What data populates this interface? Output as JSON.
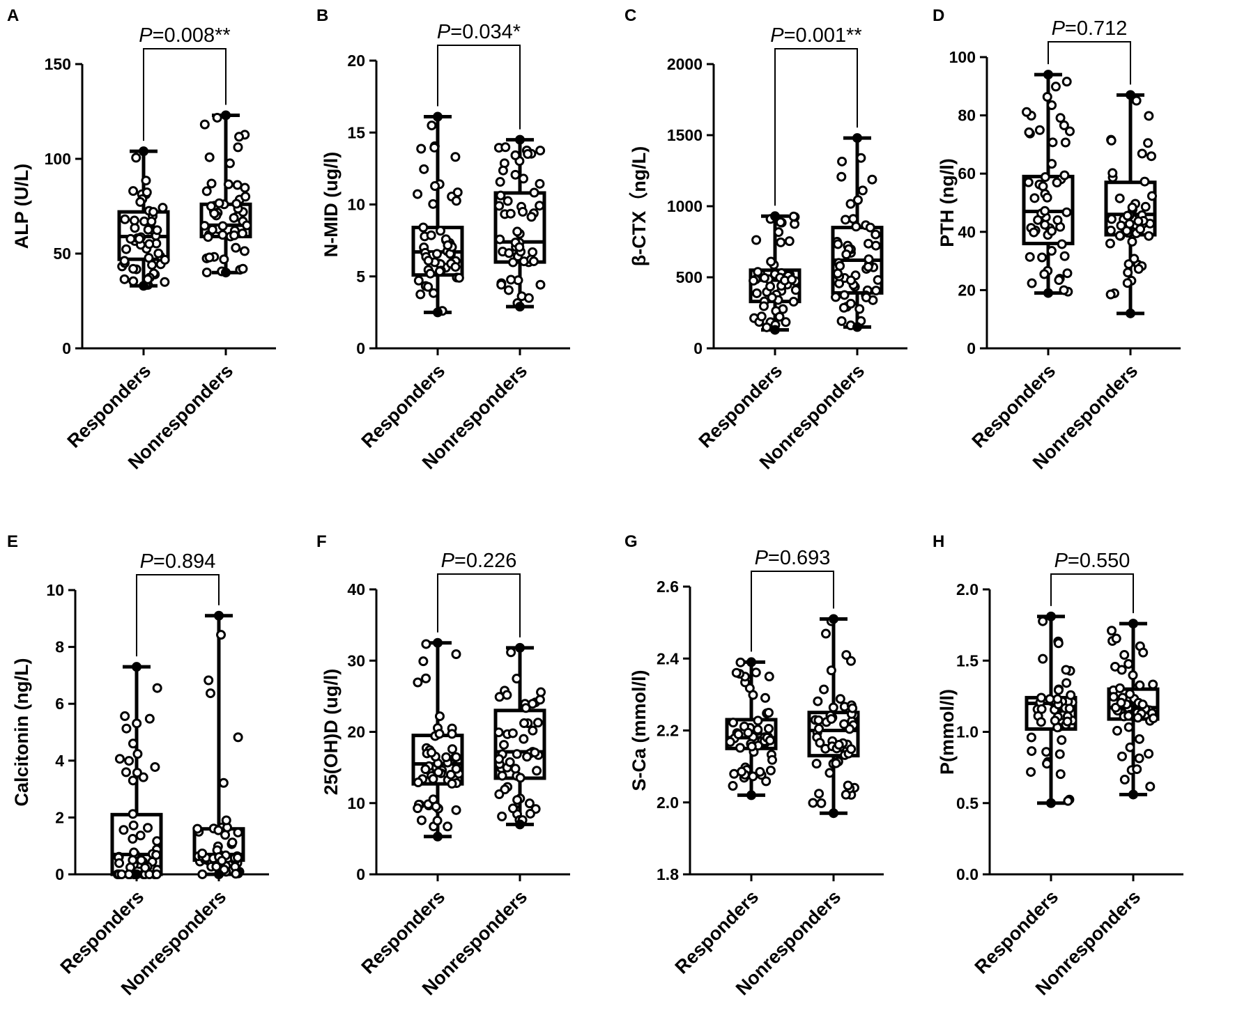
{
  "chart_data": [
    {
      "panel": "A",
      "type": "box",
      "ylabel": "ALP (U/L)",
      "ylim": [
        0,
        150
      ],
      "yticks": [
        0,
        50,
        100,
        150
      ],
      "categories": [
        "Responders",
        "Nonresponders"
      ],
      "annotation": {
        "italic": "P",
        "text": "=0.008**"
      },
      "groups": [
        {
          "name": "Responders",
          "min": 33,
          "q1": 47,
          "median": 59,
          "q3": 72,
          "max": 104
        },
        {
          "name": "Nonresponders",
          "min": 40,
          "q1": 59,
          "median": 65,
          "q3": 76,
          "max": 123
        }
      ]
    },
    {
      "panel": "B",
      "type": "box",
      "ylabel": "N-MID (ug/l)",
      "ylim": [
        0,
        20
      ],
      "yticks": [
        0,
        5,
        10,
        15,
        20
      ],
      "categories": [
        "Responders",
        "Nonresponders"
      ],
      "annotation": {
        "italic": "P",
        "text": "=0.034*"
      },
      "groups": [
        {
          "name": "Responders",
          "min": 2.5,
          "q1": 5.1,
          "median": 6.7,
          "q3": 8.4,
          "max": 16.1
        },
        {
          "name": "Nonresponders",
          "min": 2.9,
          "q1": 6.0,
          "median": 7.4,
          "q3": 10.8,
          "max": 14.5
        }
      ]
    },
    {
      "panel": "C",
      "type": "box",
      "ylabel": "β-CTX（ng/L)",
      "ylim": [
        0,
        2000
      ],
      "yticks": [
        0,
        500,
        1000,
        1500,
        2000
      ],
      "categories": [
        "Responders",
        "Nonresponders"
      ],
      "annotation": {
        "italic": "P",
        "text": "=0.001**"
      },
      "groups": [
        {
          "name": "Responders",
          "min": 130,
          "q1": 330,
          "median": 480,
          "q3": 550,
          "max": 930
        },
        {
          "name": "Nonresponders",
          "min": 150,
          "q1": 390,
          "median": 620,
          "q3": 850,
          "max": 1480
        }
      ]
    },
    {
      "panel": "D",
      "type": "box",
      "ylabel": "PTH (ng/l)",
      "ylim": [
        0,
        100
      ],
      "yticks": [
        0,
        20,
        40,
        60,
        80,
        100
      ],
      "categories": [
        "Responders",
        "Nonresponders"
      ],
      "annotation": {
        "italic": "P",
        "text": "=0.712"
      },
      "groups": [
        {
          "name": "Responders",
          "min": 19,
          "q1": 36,
          "median": 47,
          "q3": 59,
          "max": 94
        },
        {
          "name": "Nonresponders",
          "min": 12,
          "q1": 39,
          "median": 46,
          "q3": 57,
          "max": 87
        }
      ]
    },
    {
      "panel": "E",
      "type": "box",
      "ylabel": "Calcitonin (ng/L)",
      "ylim": [
        0,
        10
      ],
      "yticks": [
        0,
        2,
        4,
        6,
        8,
        10
      ],
      "categories": [
        "Responders",
        "Nonresponders"
      ],
      "annotation": {
        "italic": "P",
        "text": "=0.894"
      },
      "groups": [
        {
          "name": "Responders",
          "min": 0,
          "q1": 0,
          "median": 0.7,
          "q3": 2.1,
          "max": 7.3
        },
        {
          "name": "Nonresponders",
          "min": 0,
          "q1": 0.5,
          "median": 0.7,
          "q3": 1.6,
          "max": 9.1
        }
      ]
    },
    {
      "panel": "F",
      "type": "box",
      "ylabel": "25(OH)D (ug/l)",
      "ylim": [
        0,
        40
      ],
      "yticks": [
        0,
        10,
        20,
        30,
        40
      ],
      "categories": [
        "Responders",
        "Nonresponders"
      ],
      "annotation": {
        "italic": "P",
        "text": "=0.226"
      },
      "groups": [
        {
          "name": "Responders",
          "min": 5.3,
          "q1": 12.7,
          "median": 15.5,
          "q3": 19.5,
          "max": 32.5
        },
        {
          "name": "Nonresponders",
          "min": 7.0,
          "q1": 13.5,
          "median": 17.2,
          "q3": 23.0,
          "max": 31.8
        }
      ]
    },
    {
      "panel": "G",
      "type": "box",
      "ylabel": "S-Ca (mmol/l)",
      "ylim": [
        1.8,
        2.6
      ],
      "yticks": [
        1.8,
        2.0,
        2.2,
        2.4,
        2.6
      ],
      "categories": [
        "Responders",
        "Nonresponders"
      ],
      "annotation": {
        "italic": "P",
        "text": "=0.693"
      },
      "groups": [
        {
          "name": "Responders",
          "min": 2.02,
          "q1": 2.15,
          "median": 2.18,
          "q3": 2.23,
          "max": 2.39
        },
        {
          "name": "Nonresponders",
          "min": 1.97,
          "q1": 2.13,
          "median": 2.2,
          "q3": 2.25,
          "max": 2.51
        }
      ]
    },
    {
      "panel": "H",
      "type": "box",
      "ylabel": "P(mmol/l)",
      "ylim": [
        0.0,
        2.0
      ],
      "yticks": [
        0.0,
        0.5,
        1.0,
        1.5,
        2.0
      ],
      "categories": [
        "Responders",
        "Nonresponders"
      ],
      "annotation": {
        "italic": "P",
        "text": "=0.550"
      },
      "groups": [
        {
          "name": "Responders",
          "min": 0.5,
          "q1": 1.02,
          "median": 1.2,
          "q3": 1.24,
          "max": 1.81
        },
        {
          "name": "Nonresponders",
          "min": 0.56,
          "q1": 1.09,
          "median": 1.17,
          "q3": 1.3,
          "max": 1.76
        }
      ]
    }
  ]
}
